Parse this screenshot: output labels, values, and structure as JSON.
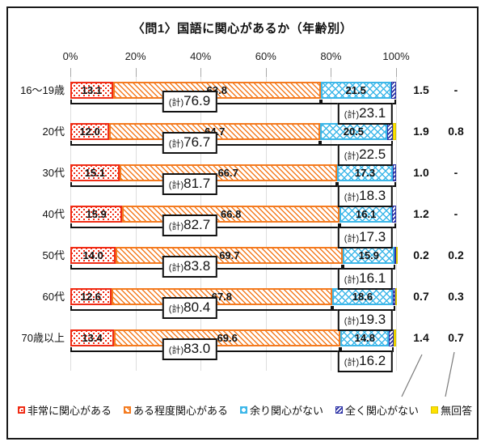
{
  "title": "〈問1〉国語に関心があるか（年齢別）",
  "total_prefix": "(計)",
  "axis": {
    "ticks": [
      "0%",
      "20%",
      "40%",
      "60%",
      "80%",
      "100%"
    ],
    "range": [
      0,
      100
    ]
  },
  "colors": {
    "very_interested": "#f02c15",
    "somewhat_interested": "#f47b20",
    "not_very_interested": "#3db7e9",
    "not_at_all_interested": "#2b31a5",
    "no_answer": "#ffe100"
  },
  "legend": [
    {
      "label": "非常に関心がある",
      "pattern": "dots",
      "color": "#f02c15"
    },
    {
      "label": "ある程度関心がある",
      "pattern": "diagonal-stripes",
      "color": "#f47b20"
    },
    {
      "label": "余り関心がない",
      "pattern": "cross-hatch",
      "color": "#3db7e9"
    },
    {
      "label": "全く関心がない",
      "pattern": "fine-hatch",
      "color": "#2b31a5"
    },
    {
      "label": "無回答",
      "pattern": "solid",
      "color": "#ffe100"
    }
  ],
  "chart_data": {
    "type": "bar",
    "orientation": "horizontal",
    "stacked": true,
    "title": "〈問1〉国語に関心があるか（年齢別）",
    "x_axis": {
      "ticks": [
        "0%",
        "20%",
        "40%",
        "60%",
        "80%",
        "100%"
      ],
      "range": [
        0,
        100
      ],
      "grid": true
    },
    "categories": [
      "16〜19歳",
      "20代",
      "30代",
      "40代",
      "50代",
      "60代",
      "70歳以上"
    ],
    "series": [
      {
        "name": "非常に関心がある",
        "values": [
          13.1,
          12.0,
          15.1,
          15.9,
          14.0,
          12.6,
          13.4
        ]
      },
      {
        "name": "ある程度関心がある",
        "values": [
          63.8,
          64.7,
          66.7,
          66.8,
          69.7,
          67.8,
          69.6
        ]
      },
      {
        "name": "余り関心がない",
        "values": [
          21.5,
          20.5,
          17.3,
          16.1,
          15.9,
          18.6,
          14.8
        ]
      },
      {
        "name": "全く関心がない",
        "values": [
          1.5,
          1.9,
          1.0,
          1.2,
          0.2,
          0.7,
          1.4
        ]
      },
      {
        "name": "無回答",
        "values": [
          null,
          0.8,
          null,
          null,
          0.2,
          0.3,
          0.7
        ]
      }
    ],
    "totals_interested": [
      76.9,
      76.7,
      81.7,
      82.7,
      83.8,
      80.4,
      83.0
    ],
    "totals_not_interested": [
      23.1,
      22.5,
      18.3,
      17.3,
      16.1,
      19.3,
      16.2
    ],
    "legend_position": "bottom"
  },
  "rows": [
    {
      "label": "16〜19歳",
      "v1": "13.1",
      "v2": "63.8",
      "v3": "21.5",
      "v4": "1.5",
      "v5": "-",
      "t1": "76.9",
      "t2": "23.1"
    },
    {
      "label": "20代",
      "v1": "12.0",
      "v2": "64.7",
      "v3": "20.5",
      "v4": "1.9",
      "v5": "0.8",
      "t1": "76.7",
      "t2": "22.5"
    },
    {
      "label": "30代",
      "v1": "15.1",
      "v2": "66.7",
      "v3": "17.3",
      "v4": "1.0",
      "v5": "-",
      "t1": "81.7",
      "t2": "18.3"
    },
    {
      "label": "40代",
      "v1": "15.9",
      "v2": "66.8",
      "v3": "16.1",
      "v4": "1.2",
      "v5": "-",
      "t1": "82.7",
      "t2": "17.3"
    },
    {
      "label": "50代",
      "v1": "14.0",
      "v2": "69.7",
      "v3": "15.9",
      "v4": "0.2",
      "v5": "0.2",
      "t1": "83.8",
      "t2": "16.1"
    },
    {
      "label": "60代",
      "v1": "12.6",
      "v2": "67.8",
      "v3": "18.6",
      "v4": "0.7",
      "v5": "0.3",
      "t1": "80.4",
      "t2": "19.3"
    },
    {
      "label": "70歳以上",
      "v1": "13.4",
      "v2": "69.6",
      "v3": "14.8",
      "v4": "1.4",
      "v5": "0.7",
      "t1": "83.0",
      "t2": "16.2"
    }
  ]
}
